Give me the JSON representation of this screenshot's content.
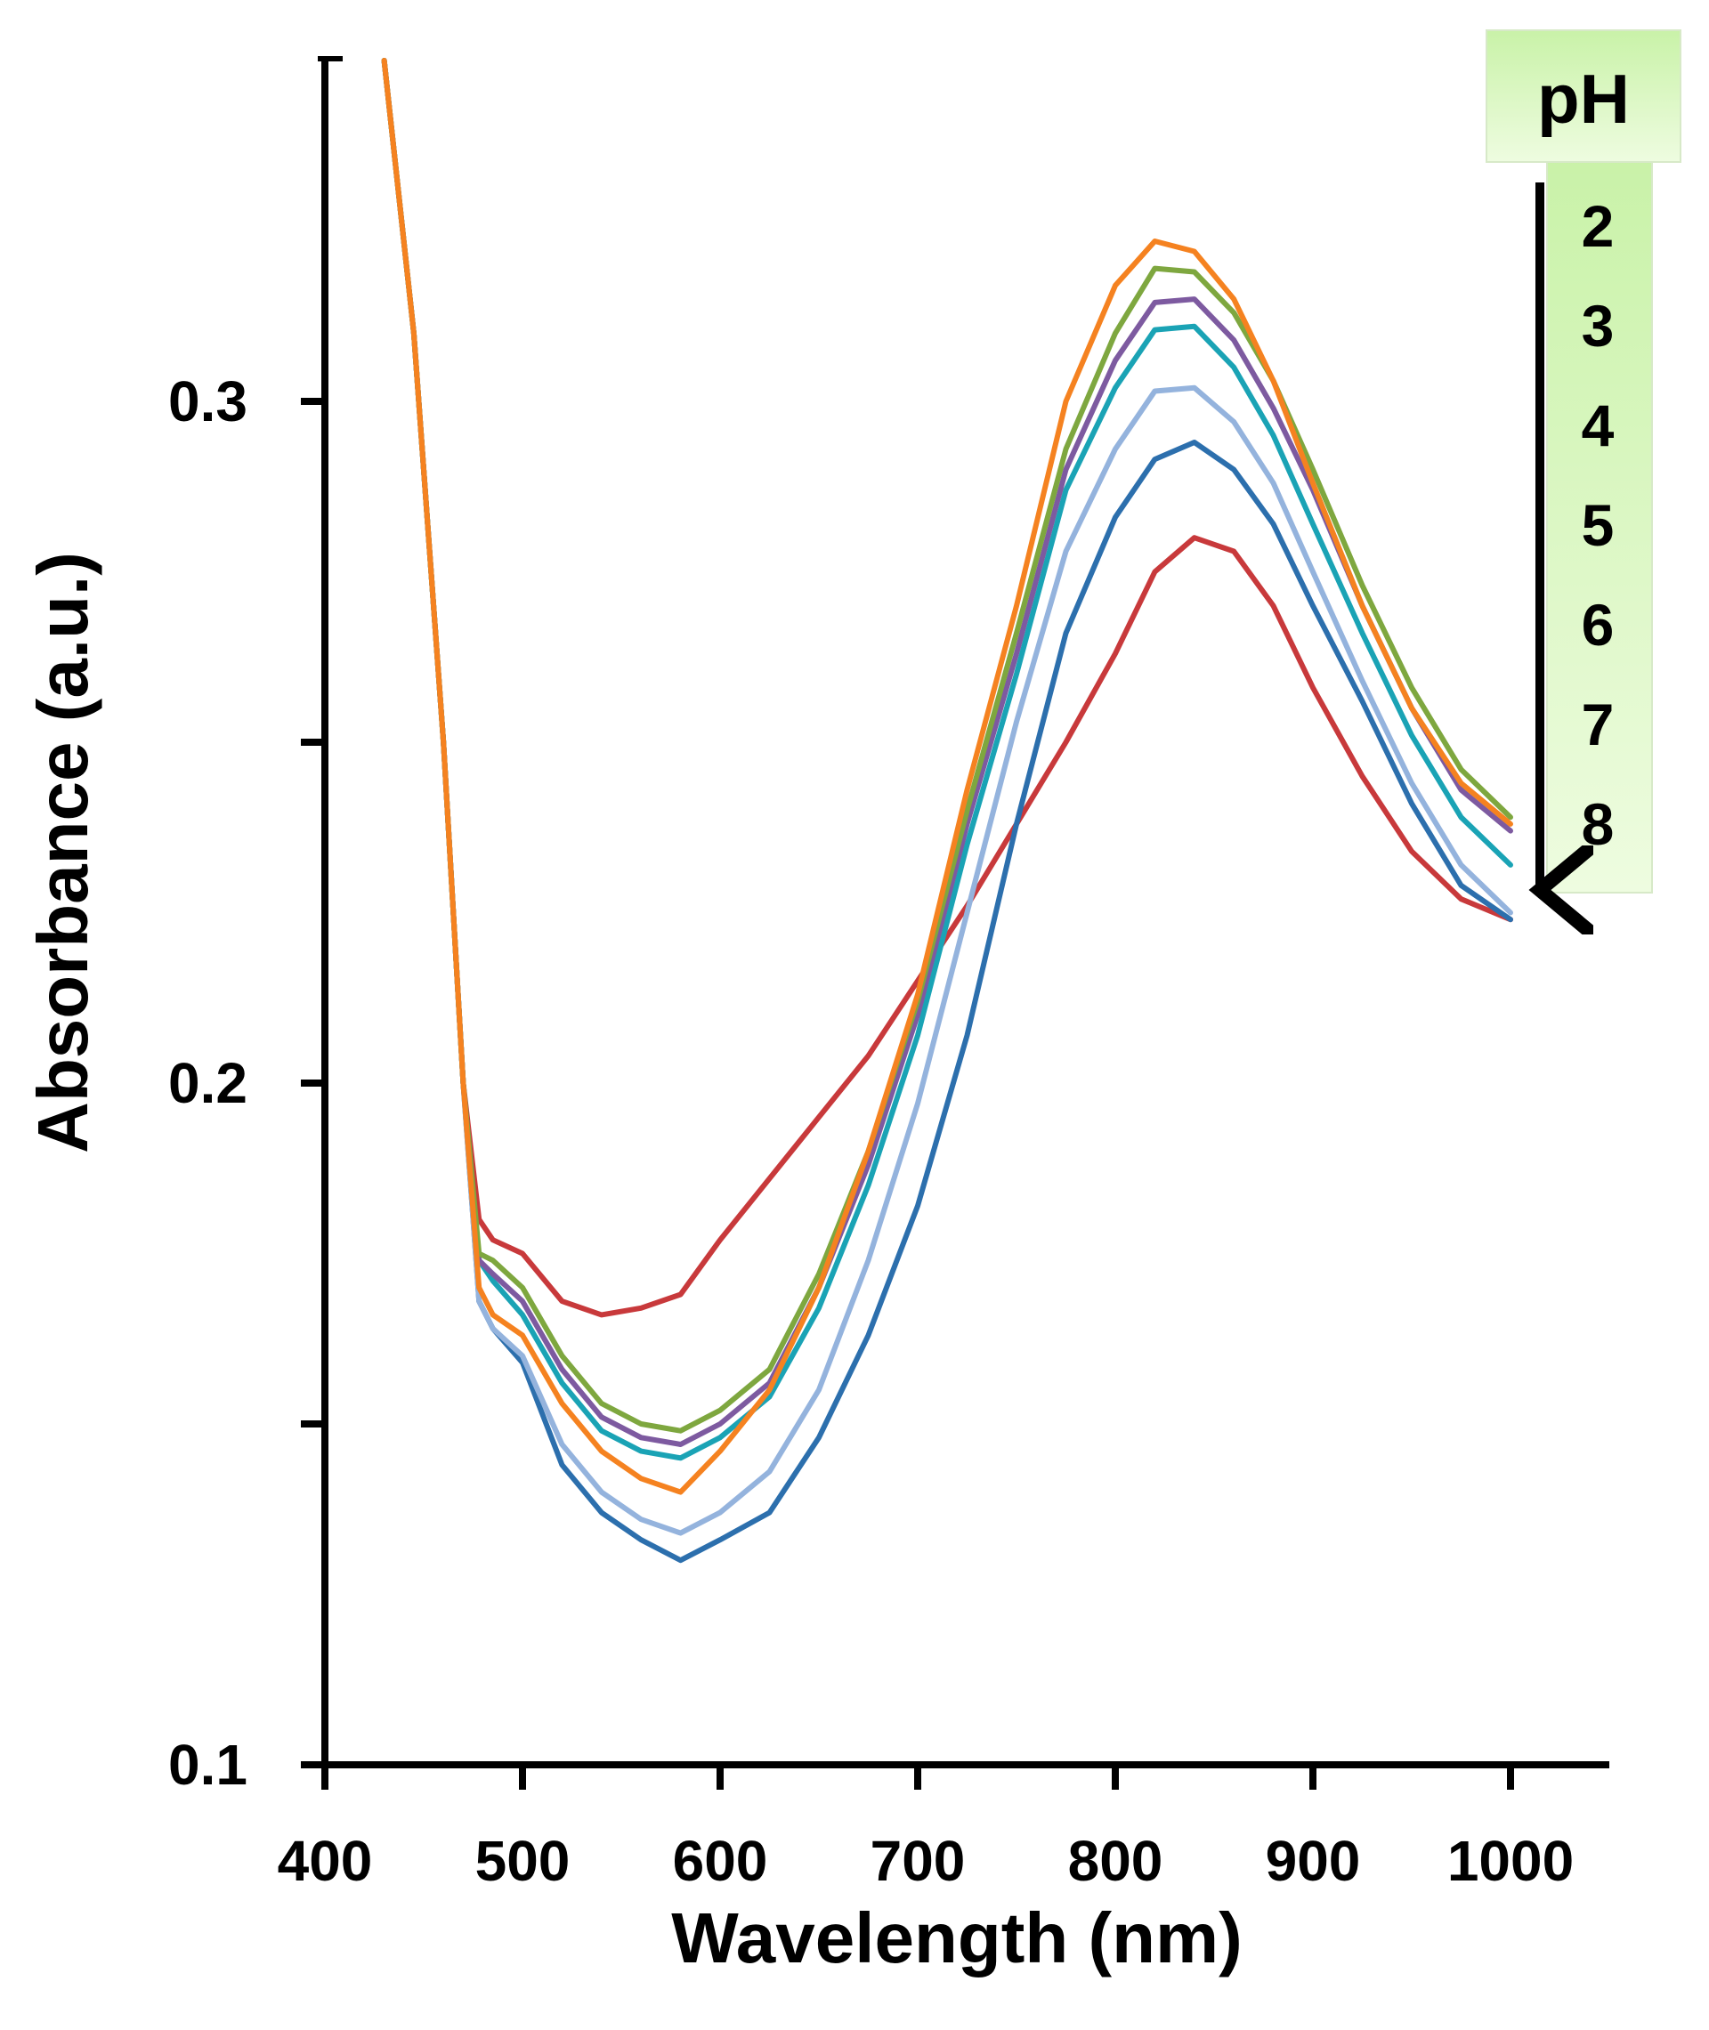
{
  "chart_data": {
    "type": "line",
    "title": "",
    "xlabel": "Wavelength (nm)",
    "ylabel": "Absorbance (a.u.)",
    "xlim": [
      400,
      1050
    ],
    "ylim": [
      0.1,
      0.35
    ],
    "xticks": [
      400,
      500,
      600,
      700,
      800,
      900,
      1000
    ],
    "xtick_labels": [
      "400",
      "500",
      "600",
      "700",
      "800",
      "900",
      "1000"
    ],
    "yticks": [
      0.1,
      0.15,
      0.2,
      0.25,
      0.3
    ],
    "ytick_labels": [
      "0.1",
      "",
      "0.2",
      "",
      "0.3"
    ],
    "grid": false,
    "legend": {
      "title": "pH",
      "entries": [
        "2",
        "3",
        "4",
        "5",
        "6",
        "7",
        "8"
      ],
      "position": "top-right",
      "arrow_direction": "down"
    },
    "x": [
      430,
      445,
      460,
      470,
      478,
      485,
      500,
      520,
      540,
      560,
      580,
      600,
      625,
      650,
      675,
      700,
      725,
      750,
      775,
      800,
      820,
      840,
      860,
      880,
      900,
      925,
      950,
      975,
      1000
    ],
    "series": [
      {
        "name": "2",
        "color": "#f58220",
        "values": [
          0.35,
          0.31,
          0.25,
          0.2,
          0.17,
          0.166,
          0.163,
          0.153,
          0.146,
          0.142,
          0.14,
          0.146,
          0.155,
          0.17,
          0.19,
          0.213,
          0.243,
          0.27,
          0.3,
          0.317,
          0.3235,
          0.322,
          0.315,
          0.303,
          0.288,
          0.27,
          0.255,
          0.244,
          0.238
        ]
      },
      {
        "name": "3",
        "color": "#7ea73f",
        "values": [
          0.35,
          0.31,
          0.25,
          0.2,
          0.175,
          0.174,
          0.17,
          0.16,
          0.153,
          0.15,
          0.149,
          0.152,
          0.158,
          0.172,
          0.19,
          0.212,
          0.24,
          0.266,
          0.293,
          0.31,
          0.3195,
          0.319,
          0.313,
          0.303,
          0.29,
          0.273,
          0.258,
          0.246,
          0.239
        ]
      },
      {
        "name": "4",
        "color": "#7d5aa0",
        "values": [
          0.35,
          0.31,
          0.25,
          0.2,
          0.174,
          0.172,
          0.168,
          0.158,
          0.151,
          0.148,
          0.147,
          0.15,
          0.156,
          0.17,
          0.188,
          0.21,
          0.238,
          0.263,
          0.29,
          0.306,
          0.3145,
          0.315,
          0.309,
          0.299,
          0.287,
          0.27,
          0.255,
          0.243,
          0.237
        ]
      },
      {
        "name": "5",
        "color": "#1aa3b5",
        "values": [
          0.35,
          0.31,
          0.25,
          0.2,
          0.174,
          0.171,
          0.166,
          0.156,
          0.149,
          0.146,
          0.145,
          0.148,
          0.154,
          0.167,
          0.185,
          0.207,
          0.235,
          0.26,
          0.287,
          0.302,
          0.3105,
          0.311,
          0.305,
          0.295,
          0.282,
          0.266,
          0.251,
          0.239,
          0.232
        ]
      },
      {
        "name": "6",
        "color": "#94b3dd",
        "values": [
          0.35,
          0.31,
          0.25,
          0.2,
          0.168,
          0.164,
          0.16,
          0.147,
          0.14,
          0.136,
          0.134,
          0.137,
          0.143,
          0.155,
          0.174,
          0.197,
          0.225,
          0.253,
          0.278,
          0.293,
          0.3015,
          0.302,
          0.297,
          0.288,
          0.275,
          0.259,
          0.244,
          0.232,
          0.225
        ]
      },
      {
        "name": "7",
        "color": "#2c6fad",
        "values": [
          0.35,
          0.31,
          0.25,
          0.2,
          0.168,
          0.164,
          0.159,
          0.144,
          0.137,
          0.133,
          0.13,
          0.133,
          0.137,
          0.148,
          0.163,
          0.182,
          0.207,
          0.238,
          0.266,
          0.283,
          0.2915,
          0.294,
          0.29,
          0.282,
          0.27,
          0.256,
          0.241,
          0.229,
          0.224
        ]
      },
      {
        "name": "8",
        "color": "#c8393b",
        "values": [
          0.35,
          0.31,
          0.25,
          0.2,
          0.18,
          0.177,
          0.175,
          0.168,
          0.166,
          0.167,
          0.169,
          0.177,
          0.186,
          0.195,
          0.204,
          0.215,
          0.226,
          0.238,
          0.25,
          0.263,
          0.275,
          0.28,
          0.278,
          0.27,
          0.258,
          0.245,
          0.234,
          0.227,
          0.224
        ]
      }
    ]
  },
  "colors": {
    "legend_fill_top": "#c9f2a8",
    "legend_fill_bottom": "#eefce0",
    "axis": "#000000"
  }
}
